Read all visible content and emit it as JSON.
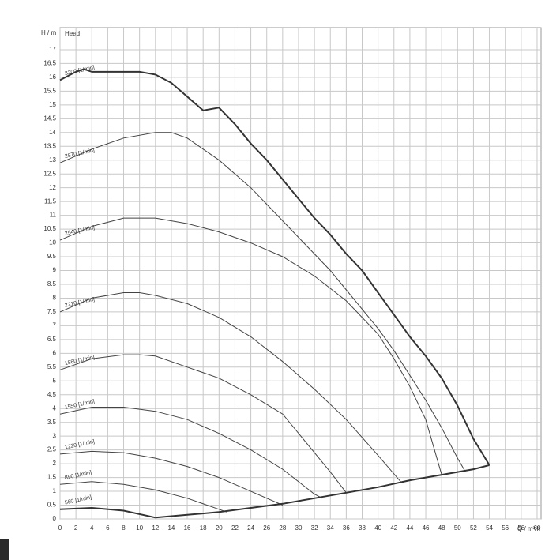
{
  "chart_data": {
    "type": "line",
    "y_label": "H / m",
    "y_title": "Head",
    "x_label": "Q / m³/h",
    "xlim": [
      0,
      60.5
    ],
    "ylim": [
      0,
      17.8
    ],
    "xticks": [
      0,
      2,
      4,
      6,
      8,
      10,
      12,
      14,
      16,
      18,
      20,
      22,
      24,
      26,
      28,
      30,
      32,
      34,
      36,
      38,
      40,
      42,
      44,
      46,
      48,
      50,
      52,
      54,
      56,
      58,
      60
    ],
    "yticks": [
      0,
      0.5,
      1,
      1.5,
      2,
      2.5,
      3,
      3.5,
      4,
      4.5,
      5,
      5.5,
      6,
      6.5,
      7,
      7.5,
      8,
      8.5,
      9,
      9.5,
      10,
      10.5,
      11,
      11.5,
      12,
      12.5,
      13,
      13.5,
      14,
      14.5,
      15,
      15.5,
      16,
      16.5,
      17
    ],
    "grid": true,
    "series": [
      {
        "name": "3200 [1/min]",
        "color": "#333333",
        "width": 2,
        "x": [
          0,
          2,
          3,
          4,
          8,
          10,
          12,
          14,
          16,
          18,
          20,
          22,
          24,
          26,
          28,
          30,
          32,
          34,
          36,
          38,
          40,
          42,
          44,
          46,
          48,
          50,
          52,
          54
        ],
        "values": [
          15.9,
          16.2,
          16.3,
          16.2,
          16.2,
          16.2,
          16.1,
          15.8,
          15.3,
          14.8,
          14.9,
          14.3,
          13.6,
          13.0,
          12.3,
          11.6,
          10.9,
          10.3,
          9.6,
          9.0,
          8.2,
          7.4,
          6.6,
          5.9,
          5.1,
          4.1,
          2.9,
          1.95
        ]
      },
      {
        "name": "2870 [1/min]",
        "color": "#444444",
        "width": 1,
        "x": [
          0,
          4,
          8,
          12,
          14,
          16,
          18,
          20,
          22,
          24,
          26,
          28,
          30,
          32,
          34,
          36,
          38,
          40,
          42,
          44,
          46,
          48,
          50,
          51
        ],
        "values": [
          12.9,
          13.4,
          13.8,
          14.0,
          14.0,
          13.8,
          13.4,
          13.0,
          12.5,
          12.0,
          11.4,
          10.8,
          10.2,
          9.6,
          9.0,
          8.3,
          7.6,
          6.9,
          6.1,
          5.2,
          4.3,
          3.3,
          2.2,
          1.7
        ]
      },
      {
        "name": "2540 [1/min]",
        "color": "#444444",
        "width": 1,
        "x": [
          0,
          4,
          8,
          12,
          16,
          20,
          24,
          28,
          32,
          36,
          40,
          42,
          44,
          46,
          48
        ],
        "values": [
          10.1,
          10.6,
          10.9,
          10.9,
          10.7,
          10.4,
          10.0,
          9.5,
          8.8,
          7.9,
          6.7,
          5.8,
          4.8,
          3.6,
          1.6
        ]
      },
      {
        "name": "2210 [1/min]",
        "color": "#444444",
        "width": 1,
        "x": [
          0,
          4,
          8,
          10,
          12,
          16,
          20,
          24,
          28,
          32,
          36,
          40,
          43
        ],
        "values": [
          7.5,
          8.0,
          8.2,
          8.2,
          8.1,
          7.8,
          7.3,
          6.6,
          5.7,
          4.7,
          3.6,
          2.3,
          1.3
        ]
      },
      {
        "name": "1880 [1/min]",
        "color": "#444444",
        "width": 1,
        "x": [
          0,
          4,
          8,
          10,
          12,
          16,
          20,
          24,
          28,
          32,
          34,
          36
        ],
        "values": [
          5.4,
          5.8,
          5.95,
          5.95,
          5.9,
          5.5,
          5.1,
          4.5,
          3.8,
          2.4,
          1.7,
          0.95
        ]
      },
      {
        "name": "1550 [1/min]",
        "color": "#444444",
        "width": 1,
        "x": [
          0,
          4,
          8,
          12,
          16,
          20,
          24,
          28,
          32,
          33
        ],
        "values": [
          3.8,
          4.05,
          4.05,
          3.9,
          3.6,
          3.1,
          2.5,
          1.8,
          0.9,
          0.75
        ]
      },
      {
        "name": "1220 [1/min]",
        "color": "#444444",
        "width": 1,
        "x": [
          0,
          4,
          8,
          12,
          16,
          20,
          24,
          28
        ],
        "values": [
          2.35,
          2.45,
          2.4,
          2.2,
          1.9,
          1.5,
          1.0,
          0.5
        ]
      },
      {
        "name": "890 [1/min]",
        "color": "#444444",
        "width": 1,
        "x": [
          0,
          4,
          8,
          12,
          16,
          20,
          21
        ],
        "values": [
          1.25,
          1.35,
          1.25,
          1.05,
          0.75,
          0.35,
          0.25
        ]
      },
      {
        "name": "560 [1/min]",
        "color": "#333333",
        "width": 2,
        "x": [
          0,
          4,
          8,
          12
        ],
        "values": [
          0.35,
          0.4,
          0.3,
          0.05
        ]
      },
      {
        "color": "#333333",
        "width": 2,
        "x": [
          12,
          16,
          20,
          24,
          28,
          32,
          36,
          40,
          44,
          48,
          52,
          54
        ],
        "values": [
          0.05,
          0.15,
          0.25,
          0.4,
          0.55,
          0.75,
          0.95,
          1.15,
          1.4,
          1.6,
          1.8,
          1.95
        ]
      }
    ]
  }
}
